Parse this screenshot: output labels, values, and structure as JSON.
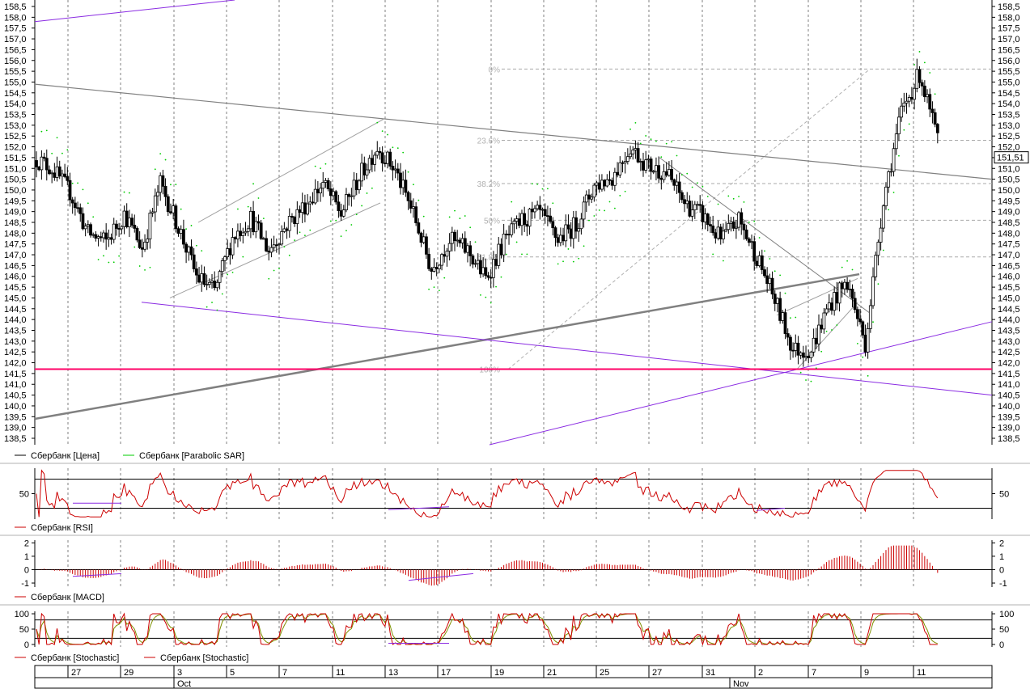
{
  "instrument": "Сбербанк",
  "legends": {
    "price": [
      "Сбербанк [Цена]",
      "Сбербанк [Parabolic SAR]"
    ],
    "rsi": "Сбербанк [RSI]",
    "macd": "Сбербанк [MACD]",
    "stochastic": [
      "Сбербанк [Stochastic]",
      "Сбербанк [Stochastic]"
    ]
  },
  "colors": {
    "candles": "#000000",
    "sar": "#00cc00",
    "rsi": "#cc0000",
    "macd": "#cc0000",
    "stoch_k": "#cc0000",
    "stoch_d": "#7f8f00",
    "support_level": "#ff0066",
    "channel": "#8a2be2",
    "trendline": "#808080"
  },
  "last_price_label": "151,51",
  "fib_levels": [
    {
      "label": "0%",
      "price": 155.6
    },
    {
      "label": "23.6%",
      "price": 152.3
    },
    {
      "label": "38.2%",
      "price": 150.3
    },
    {
      "label": "50%",
      "price": 148.6
    },
    {
      "label": "61.8%",
      "price": 146.9
    },
    {
      "label": "100%",
      "price": 141.7
    }
  ],
  "date_axis": {
    "day_labels": [
      "27",
      "29",
      "3",
      "5",
      "7",
      "11",
      "13",
      "17",
      "19",
      "21",
      "25",
      "27",
      "31",
      "2",
      "7",
      "9",
      "11"
    ],
    "month_labels": [
      "Oct",
      "Nov"
    ]
  },
  "chart_data": [
    {
      "type": "candlestick",
      "title": "",
      "ylim": [
        138.2,
        158.8
      ],
      "y_ticks": [
        "158,5",
        "158,0",
        "157,5",
        "157,0",
        "156,5",
        "156,0",
        "155,5",
        "155,0",
        "154,5",
        "154,0",
        "153,5",
        "153,0",
        "152,5",
        "152,0",
        "151,5",
        "151,0",
        "150,5",
        "150,0",
        "149,5",
        "149,0",
        "148,5",
        "148,0",
        "147,5",
        "147,0",
        "146,5",
        "146,0",
        "145,5",
        "145,0",
        "144,5",
        "144,0",
        "143,5",
        "143,0",
        "142,5",
        "142,0",
        "141,5",
        "141,0",
        "140,5",
        "140,0",
        "139,5",
        "139,0",
        "138,5"
      ],
      "session_closes": [
        151.0,
        149.9,
        148.0,
        147.6,
        148.9,
        147.3,
        150.3,
        148.3,
        146.0,
        145.3,
        147.8,
        148.7,
        147.2,
        148.4,
        149.3,
        150.3,
        148.9,
        150.6,
        152.0,
        150.9,
        148.9,
        146.3,
        147.7,
        147.2,
        145.9,
        147.6,
        148.6,
        148.9,
        147.7,
        148.4,
        150.2,
        150.6,
        152.0,
        151.1,
        150.8,
        149.4,
        148.8,
        147.7,
        148.6,
        146.9,
        144.9,
        142.6,
        142.6,
        144.7,
        145.7,
        142.9,
        149.6,
        153.6,
        155.4,
        152.3
      ],
      "parabolic_sar": "dotted series above and below price",
      "support_level": 141.7,
      "last_price": 151.51
    },
    {
      "type": "line",
      "name": "RSI",
      "y_ticks": [
        "50"
      ],
      "levels": [
        70,
        30
      ],
      "ylim": [
        15,
        85
      ]
    },
    {
      "type": "bar",
      "name": "MACD",
      "y_ticks": [
        "2",
        "1",
        "0",
        "-1"
      ],
      "ylim": [
        -1.3,
        2.2
      ]
    },
    {
      "type": "line",
      "name": "Stochastic",
      "y_ticks": [
        "100",
        "50",
        "0"
      ],
      "levels": [
        80,
        20
      ],
      "ylim": [
        -8,
        108
      ]
    }
  ]
}
